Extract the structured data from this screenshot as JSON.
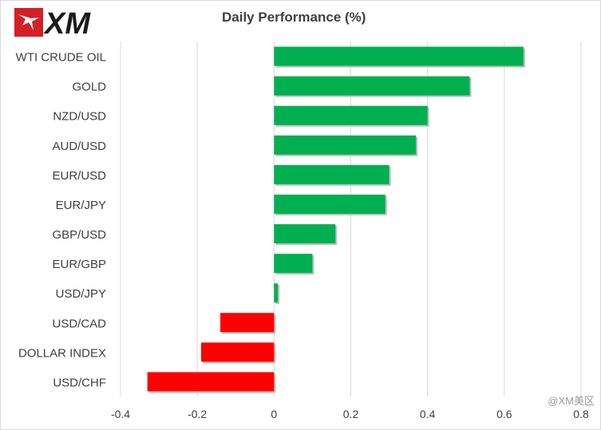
{
  "brand": {
    "logo_text": "XM",
    "watermark": "@XM美区"
  },
  "colors": {
    "positive": "#00b050",
    "negative": "#ff0000",
    "grid": "#d9d9d9",
    "text": "#404040",
    "logo_red": "#d51f26",
    "logo_black": "#1a1a1a"
  },
  "chart_data": {
    "type": "bar",
    "orientation": "horizontal",
    "title": "Daily Performance  (%)",
    "xlabel": "",
    "ylabel": "",
    "categories": [
      "WTI CRUDE OIL",
      "GOLD",
      "NZD/USD",
      "AUD/USD",
      "EUR/USD",
      "EUR/JPY",
      "GBP/USD",
      "EUR/GBP",
      "USD/JPY",
      "USD/CAD",
      "DOLLAR INDEX",
      "USD/CHF"
    ],
    "values": [
      0.65,
      0.51,
      0.4,
      0.37,
      0.3,
      0.29,
      0.16,
      0.1,
      0.01,
      -0.14,
      -0.19,
      -0.33
    ],
    "xlim": [
      -0.4,
      0.8
    ],
    "xticks": [
      "-0.4",
      "-0.2",
      "0",
      "0.2",
      "0.4",
      "0.6",
      "0.8"
    ],
    "xtick_values": [
      -0.4,
      -0.2,
      0,
      0.2,
      0.4,
      0.6,
      0.8
    ],
    "grid": "vertical",
    "legend": "none"
  }
}
